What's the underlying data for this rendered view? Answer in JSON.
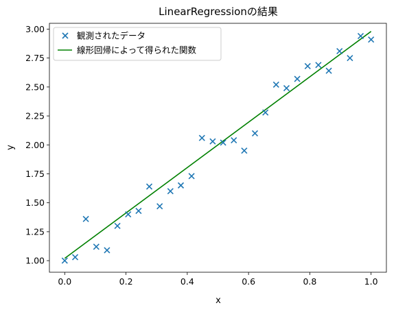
{
  "chart_data": {
    "type": "scatter",
    "title": "LinearRegressionの結果",
    "xlabel": "x",
    "ylabel": "y",
    "xlim": [
      -0.05,
      1.05
    ],
    "ylim": [
      0.9,
      3.05
    ],
    "x_ticks": [
      0.0,
      0.2,
      0.4,
      0.6,
      0.8,
      1.0
    ],
    "x_tick_labels": [
      "0.0",
      "0.2",
      "0.4",
      "0.6",
      "0.8",
      "1.0"
    ],
    "y_ticks": [
      1.0,
      1.25,
      1.5,
      1.75,
      2.0,
      2.25,
      2.5,
      2.75,
      3.0
    ],
    "y_tick_labels": [
      "1.00",
      "1.25",
      "1.50",
      "1.75",
      "2.00",
      "2.25",
      "2.50",
      "2.75",
      "3.00"
    ],
    "grid": false,
    "legend_position": "top-left",
    "series": [
      {
        "name": "観測されたデータ",
        "kind": "scatter",
        "marker": "x",
        "color": "#1f77b4",
        "x": [
          0.0,
          0.034,
          0.069,
          0.103,
          0.138,
          0.172,
          0.207,
          0.241,
          0.276,
          0.31,
          0.345,
          0.379,
          0.414,
          0.448,
          0.483,
          0.517,
          0.552,
          0.586,
          0.621,
          0.655,
          0.69,
          0.724,
          0.759,
          0.793,
          0.828,
          0.862,
          0.897,
          0.931,
          0.966,
          1.0
        ],
        "y": [
          1.0,
          1.03,
          1.36,
          1.12,
          1.09,
          1.3,
          1.4,
          1.43,
          1.64,
          1.47,
          1.6,
          1.65,
          1.73,
          2.06,
          2.03,
          2.02,
          2.04,
          1.95,
          2.1,
          2.28,
          2.52,
          2.49,
          2.57,
          2.68,
          2.69,
          2.64,
          2.81,
          2.75,
          2.94,
          2.91
        ]
      },
      {
        "name": "線形回帰によって得られた関数",
        "kind": "line",
        "color": "#008000",
        "x": [
          0.0,
          1.0
        ],
        "y": [
          1.02,
          2.98
        ]
      }
    ]
  }
}
